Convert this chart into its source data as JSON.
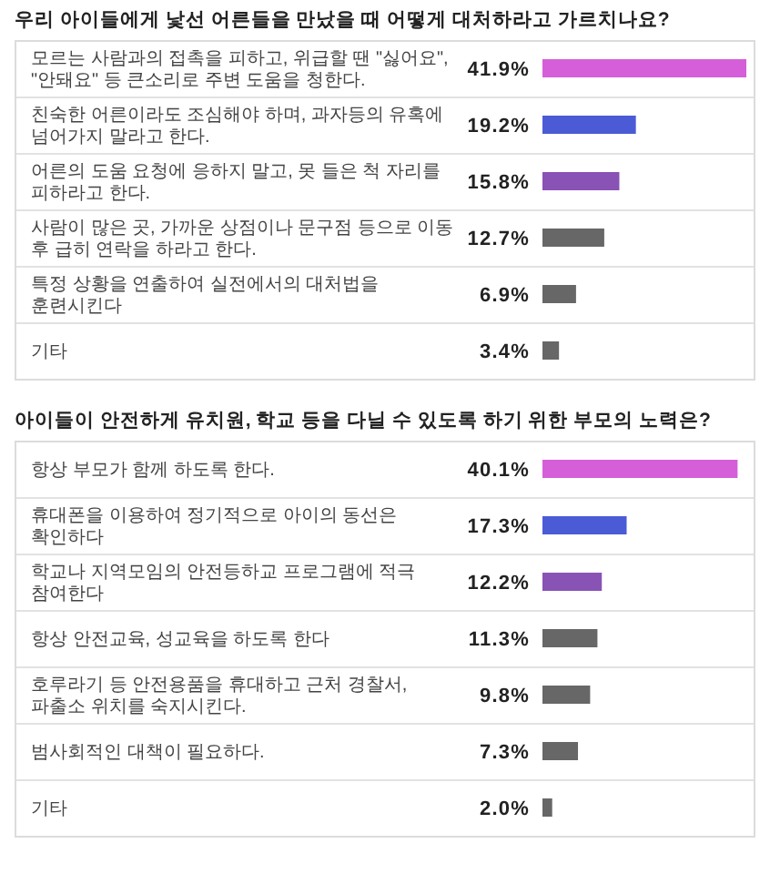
{
  "chart_data": [
    {
      "type": "bar",
      "orientation": "horizontal",
      "title": "우리 아이들에게 낯선 어른들을 만났을 때 어떻게 대처하라고 가르치나요?",
      "categories": [
        "모르는 사람과의 접촉을 피하고, 위급할 땐 \"싫어요\", \"안돼요\" 등 큰소리로 주변 도움을 청한다.",
        "친숙한 어른이라도 조심해야 하며, 과자등의 유혹에 넘어가지 말라고 한다.",
        "어른의 도움 요청에 응하지 말고, 못 들은 척 자리를 피하라고 한다.",
        "사람이 많은 곳, 가까운 상점이나 문구점 등으로 이동 후 급히 연락을 하라고 한다.",
        "특정 상황을 연출하여 실전에서의 대처법을 훈련시킨다",
        "기타"
      ],
      "values": [
        41.9,
        19.2,
        15.8,
        12.7,
        6.9,
        3.4
      ],
      "colors": [
        "#d45fd8",
        "#4b5bd6",
        "#8952b5",
        "#676767",
        "#676767",
        "#676767"
      ],
      "value_labels": [
        "41.9%",
        "19.2%",
        "15.8%",
        "12.7%",
        "6.9%",
        "3.4%"
      ]
    },
    {
      "type": "bar",
      "orientation": "horizontal",
      "title": "아이들이 안전하게 유치원, 학교 등을 다닐 수 있도록 하기 위한 부모의 노력은?",
      "categories": [
        "항상 부모가 함께 하도록 한다.",
        "휴대폰을 이용하여 정기적으로 아이의 동선은 확인하다",
        "학교나 지역모임의 안전등하교 프로그램에 적극 참여한다",
        "항상 안전교육, 성교육을 하도록 한다",
        "호루라기 등 안전용품을 휴대하고 근처 경찰서, 파출소 위치를 숙지시킨다.",
        "범사회적인 대책이 필요하다.",
        "기타"
      ],
      "values": [
        40.1,
        17.3,
        12.2,
        11.3,
        9.8,
        7.3,
        2.0
      ],
      "colors": [
        "#d45fd8",
        "#4b5bd6",
        "#8952b5",
        "#676767",
        "#676767",
        "#676767",
        "#676767"
      ],
      "value_labels": [
        "40.1%",
        "17.3%",
        "12.2%",
        "11.3%",
        "9.8%",
        "7.3%",
        "2.0%"
      ]
    }
  ]
}
